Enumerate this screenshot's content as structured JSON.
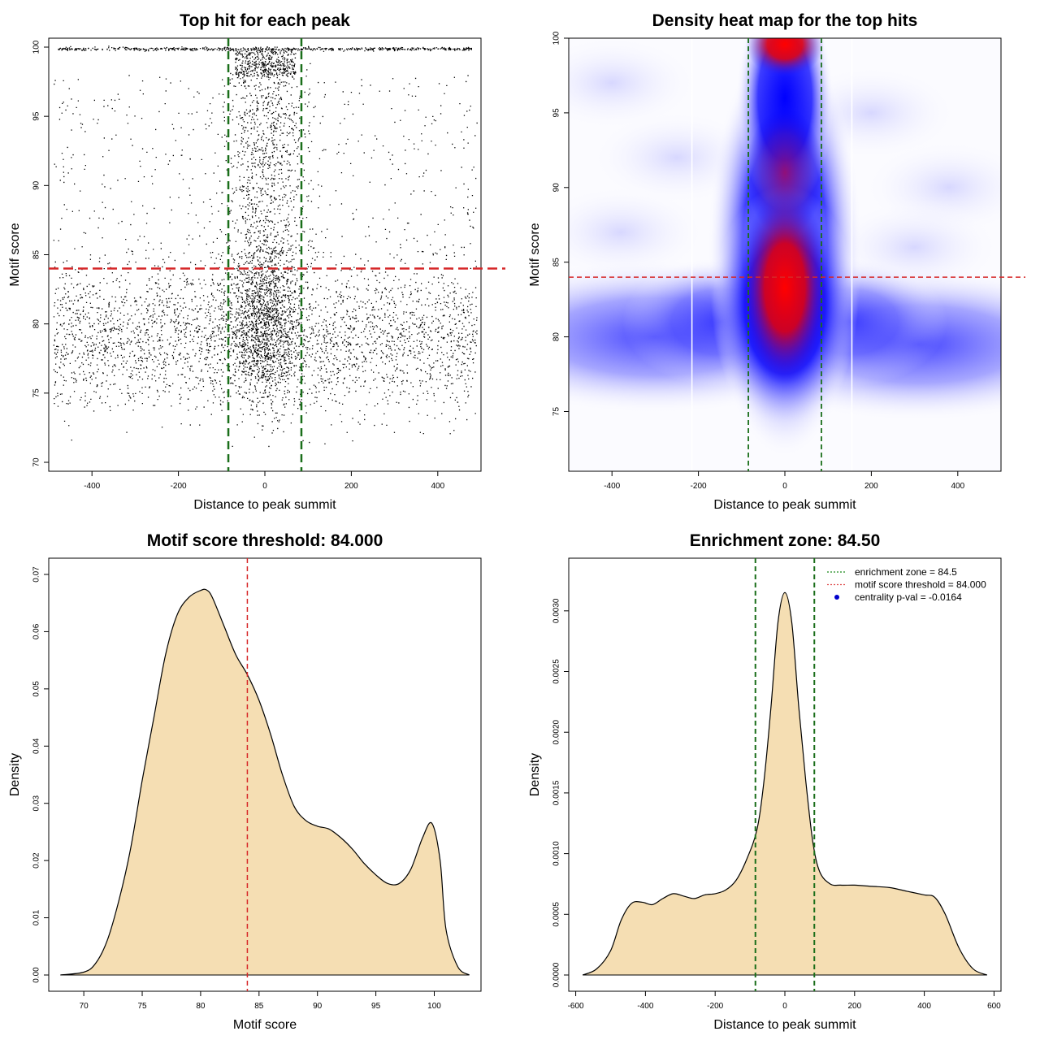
{
  "chart_data": [
    {
      "type": "scatter",
      "title": "Top hit for each peak",
      "xlabel": "Distance to peak summit",
      "ylabel": "Motif score",
      "xlim": [
        -500,
        500
      ],
      "ylim": [
        70,
        100
      ],
      "xticks": [
        -400,
        -200,
        0,
        200,
        400
      ],
      "yticks": [
        70,
        75,
        80,
        85,
        90,
        95,
        100
      ],
      "threshold_line": {
        "y": 84,
        "color": "#d62728"
      },
      "zone_lines": {
        "x": [
          -84.5,
          84.5
        ],
        "color": "#1a6e1a"
      },
      "note": "thousands of points; dense band at score ~100 and a central column around distance 0"
    },
    {
      "type": "heatmap",
      "title": "Density heat map for the top hits",
      "xlabel": "Distance to peak summit",
      "ylabel": "Motif score",
      "xlim": [
        -500,
        500
      ],
      "ylim": [
        71,
        100
      ],
      "xticks": [
        -400,
        -200,
        0,
        200,
        400
      ],
      "yticks": [
        75,
        80,
        85,
        90,
        95,
        100
      ],
      "threshold_line": {
        "y": 84,
        "color": "#d62728"
      },
      "zone_lines": {
        "x": [
          -84.5,
          84.5
        ],
        "color": "#1a6e1a"
      },
      "hotspots": [
        {
          "x": 0,
          "y": 83,
          "intensity": "high"
        },
        {
          "x": 0,
          "y": 99.5,
          "intensity": "high"
        },
        {
          "x": 0,
          "y": 91,
          "intensity": "medium"
        },
        {
          "x": -300,
          "y": 80,
          "intensity": "low"
        },
        {
          "x": 300,
          "y": 79,
          "intensity": "low"
        }
      ]
    },
    {
      "type": "area",
      "title": "Motif score threshold: 84.000",
      "xlabel": "Motif score",
      "ylabel": "Density",
      "xlim": [
        67,
        104
      ],
      "ylim": [
        0,
        0.07
      ],
      "xticks": [
        70,
        75,
        80,
        85,
        90,
        95,
        100
      ],
      "yticks": [
        "0.00",
        "0.01",
        "0.02",
        "0.03",
        "0.04",
        "0.05",
        "0.06",
        "0.07"
      ],
      "x": [
        68,
        70,
        71,
        72,
        73,
        74,
        75,
        76,
        77,
        78,
        79,
        80,
        80.5,
        81,
        82,
        83,
        84,
        85,
        86,
        87,
        88,
        89,
        90,
        91,
        92,
        93,
        94,
        95,
        96,
        97,
        98,
        99,
        99.8,
        100.5,
        101,
        102,
        103
      ],
      "values": [
        0.0,
        0.0005,
        0.002,
        0.006,
        0.013,
        0.022,
        0.034,
        0.045,
        0.056,
        0.063,
        0.066,
        0.0672,
        0.0673,
        0.066,
        0.061,
        0.056,
        0.0525,
        0.048,
        0.042,
        0.035,
        0.0295,
        0.027,
        0.026,
        0.0255,
        0.024,
        0.022,
        0.0195,
        0.0175,
        0.016,
        0.016,
        0.0185,
        0.024,
        0.0265,
        0.02,
        0.008,
        0.0015,
        0.0
      ],
      "fill": "#f5deb3",
      "threshold_line": {
        "x": 84,
        "color": "#d62728"
      }
    },
    {
      "type": "area",
      "title": "Enrichment zone: 84.50",
      "xlabel": "Distance to peak summit",
      "ylabel": "Density",
      "xlim": [
        -620,
        620
      ],
      "ylim": [
        0,
        0.0033
      ],
      "xticks": [
        -600,
        -400,
        -200,
        0,
        200,
        400,
        600
      ],
      "yticks": [
        "0.0000",
        "0.0005",
        "0.0010",
        "0.0015",
        "0.0020",
        "0.0025",
        "0.0030"
      ],
      "x": [
        -580,
        -540,
        -500,
        -470,
        -440,
        -410,
        -380,
        -350,
        -320,
        -290,
        -260,
        -230,
        -200,
        -170,
        -140,
        -110,
        -80,
        -60,
        -40,
        -20,
        0,
        20,
        40,
        60,
        80,
        100,
        130,
        160,
        200,
        250,
        300,
        350,
        400,
        430,
        460,
        500,
        540,
        580
      ],
      "values": [
        0.0,
        5e-05,
        0.0002,
        0.00045,
        0.00059,
        0.0006,
        0.00058,
        0.00063,
        0.00067,
        0.00065,
        0.00063,
        0.00066,
        0.00067,
        0.0007,
        0.00078,
        0.00095,
        0.0012,
        0.0016,
        0.0022,
        0.0029,
        0.00315,
        0.0029,
        0.0022,
        0.0016,
        0.0011,
        0.00085,
        0.00075,
        0.00074,
        0.00074,
        0.00073,
        0.00072,
        0.00069,
        0.00066,
        0.00064,
        0.0005,
        0.00022,
        5e-05,
        0.0
      ],
      "fill": "#f5deb3",
      "zone_lines": {
        "x": [
          -84.5,
          84.5
        ],
        "color": "#1a6e1a"
      },
      "legend": {
        "position": "top-right",
        "entries": [
          {
            "label": "enrichment zone = 84.5",
            "color": "#1a8a1a",
            "style": "dotted-line"
          },
          {
            "label": "motif score threshold = 84.000",
            "color": "#e05050",
            "style": "dotted-line"
          },
          {
            "label": "centrality p-val = -0.0164",
            "color": "#0000cc",
            "style": "point"
          }
        ]
      }
    }
  ]
}
